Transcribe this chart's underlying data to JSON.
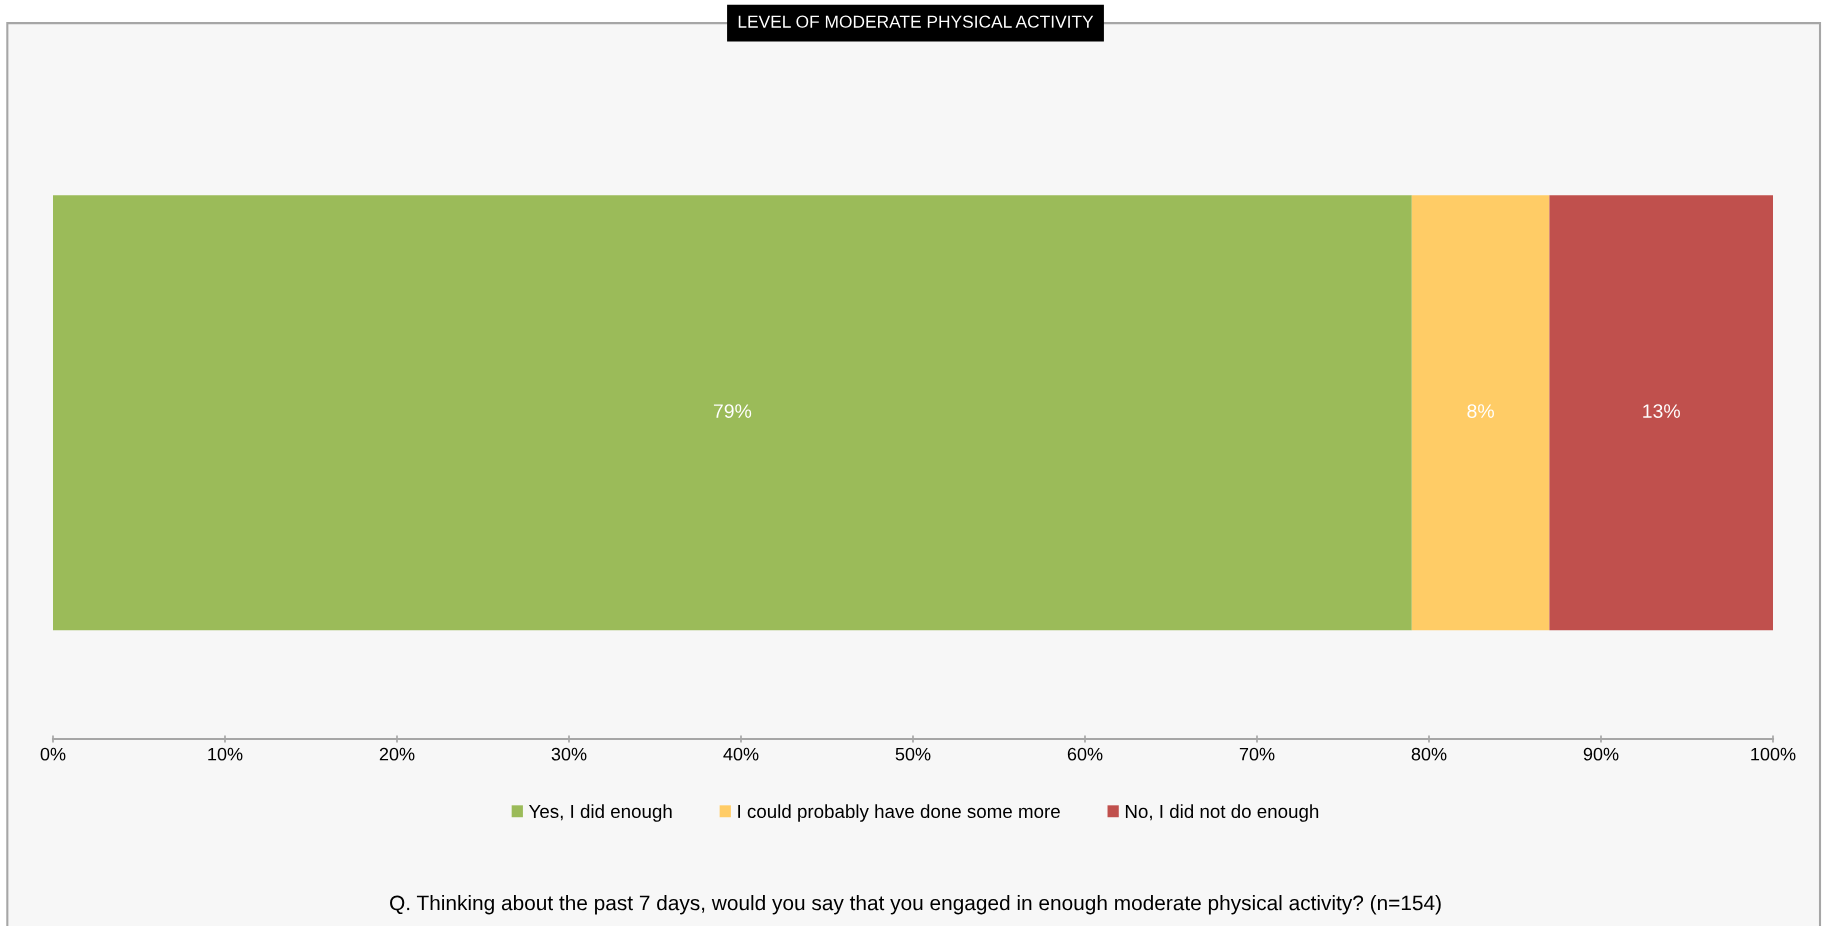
{
  "chart_data": {
    "type": "bar",
    "orientation": "horizontal",
    "stacked": true,
    "title": "LEVEL OF MODERATE PHYSICAL ACTIVITY",
    "categories": [
      null
    ],
    "series": [
      {
        "name": "Yes, I did enough",
        "color": "#9bbb59",
        "values": [
          79
        ],
        "value_labels": [
          "79%"
        ]
      },
      {
        "name": "I could probably have done some more",
        "color": "#ffcc66",
        "values": [
          8
        ],
        "value_labels": [
          "8%"
        ]
      },
      {
        "name": "No, I did not do enough",
        "color": "#c0504d",
        "values": [
          13
        ],
        "value_labels": [
          "13%"
        ]
      }
    ],
    "xlim": [
      0,
      100
    ],
    "xticks": [
      {
        "value": 0,
        "label": "0%"
      },
      {
        "value": 10,
        "label": "10%"
      },
      {
        "value": 20,
        "label": "20%"
      },
      {
        "value": 30,
        "label": "30%"
      },
      {
        "value": 40,
        "label": "40%"
      },
      {
        "value": 50,
        "label": "50%"
      },
      {
        "value": 60,
        "label": "60%"
      },
      {
        "value": 70,
        "label": "70%"
      },
      {
        "value": 80,
        "label": "80%"
      },
      {
        "value": 90,
        "label": "90%"
      },
      {
        "value": 100,
        "label": "100%"
      }
    ],
    "tick_labels": "x",
    "grid": false,
    "legend": "bottom",
    "annotations": [
      "Q. Thinking about the past 7 days, would you say that you engaged in enough moderate physical activity? (n=154)"
    ]
  }
}
